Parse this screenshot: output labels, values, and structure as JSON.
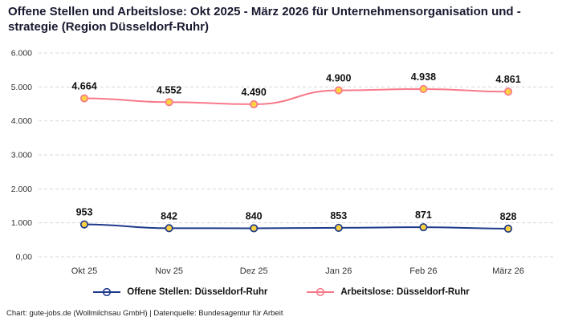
{
  "title": "Offene Stellen und Arbeitslose: Okt 2025 - März 2026 für Unternehmensorganisation und -strategie (Region Düsseldorf-Ruhr)",
  "footer": "Chart: gute-jobs.de (Wollmilchsau GmbH) | Datenquelle: Bundesagentur für Arbeit",
  "colors": {
    "title": "#181830",
    "grid": "#d8d8d8",
    "axis_text": "#333333",
    "data_label": "#111111",
    "background": "#ffffff"
  },
  "chart_data": {
    "type": "line",
    "title": "Offene Stellen und Arbeitslose: Okt 2025 - März 2026 für Unternehmensorganisation und -strategie (Region Düsseldorf-Ruhr)",
    "categories": [
      "Okt 25",
      "Nov 25",
      "Dez 25",
      "Jan 26",
      "Feb 26",
      "März 26"
    ],
    "series": [
      {
        "name": "Offene Stellen: Düsseldorf-Ruhr",
        "values": [
          953,
          842,
          840,
          853,
          871,
          828
        ],
        "data_labels": [
          "953",
          "842",
          "840",
          "853",
          "871",
          "828"
        ],
        "color": "#1e3a8a"
      },
      {
        "name": "Arbeitslose: Düsseldorf-Ruhr",
        "values": [
          4664,
          4552,
          4490,
          4900,
          4938,
          4861
        ],
        "data_labels": [
          "4.664",
          "4.552",
          "4.490",
          "4.900",
          "4.938",
          "4.861"
        ],
        "color": "#f8798a"
      }
    ],
    "marker_style": "circle",
    "marker_fill": "#ffd340",
    "ylim": [
      0,
      6000
    ],
    "yticks": [
      0,
      1000,
      2000,
      3000,
      4000,
      5000,
      6000
    ],
    "ytick_labels": [
      "0,00",
      "1.000",
      "2.000",
      "3.000",
      "4.000",
      "5.000",
      "6.000"
    ],
    "grid": "horizontal-dashed",
    "legend_position": "bottom",
    "xlabel": "",
    "ylabel": ""
  }
}
